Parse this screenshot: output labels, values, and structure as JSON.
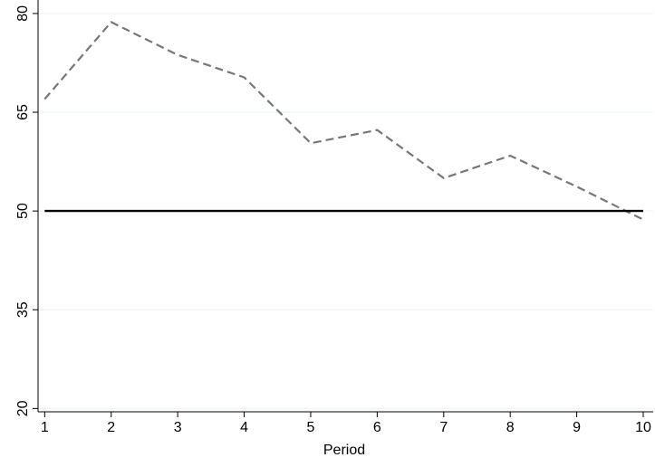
{
  "chart_data": {
    "type": "line",
    "title": "",
    "xlabel": "Period",
    "ylabel": "",
    "x": [
      1,
      2,
      3,
      4,
      5,
      6,
      7,
      8,
      9,
      10
    ],
    "xticks": [
      1,
      2,
      3,
      4,
      5,
      6,
      7,
      8,
      9,
      10
    ],
    "xtick_labels": [
      "1",
      "2",
      "3",
      "4",
      "5",
      "6",
      "7",
      "8",
      "9",
      "10"
    ],
    "yticks": [
      20,
      35,
      50,
      65,
      80
    ],
    "ytick_labels": [
      "20",
      "35",
      "50",
      "65",
      "80"
    ],
    "xlim": [
      0.9,
      10.15
    ],
    "ylim": [
      19.5,
      81.5
    ],
    "grid": true,
    "legend": "none",
    "series": [
      {
        "values": [
          67,
          78.7,
          73.7,
          70.3,
          60.3,
          62.3,
          55,
          58.4,
          53.7,
          48.7
        ],
        "color": "#777777",
        "style": "dashed"
      },
      {
        "values": [
          50,
          50,
          50,
          50,
          50,
          50,
          50,
          50,
          50,
          50
        ],
        "color": "#000000",
        "style": "solid"
      }
    ]
  }
}
